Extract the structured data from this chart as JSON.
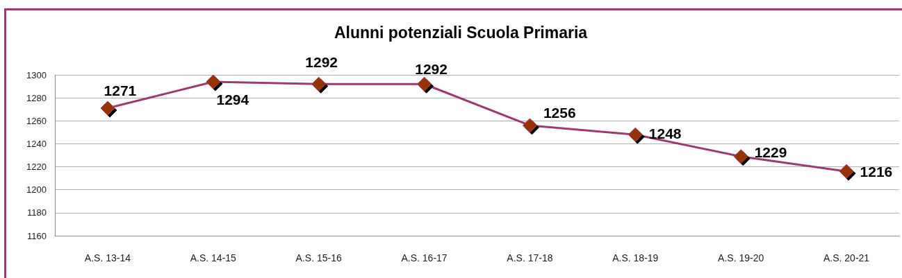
{
  "chart_data": {
    "type": "line",
    "title": "Alunni potenziali Scuola Primaria",
    "categories": [
      "A.S. 13-14",
      "A.S. 14-15",
      "A.S. 15-16",
      "A.S. 16-17",
      "A.S. 17-18",
      "A.S. 18-19",
      "A.S. 19-20",
      "A.S. 20-21"
    ],
    "series": [
      {
        "color": "#9b3a6e",
        "values": [
          1271,
          1294,
          1292,
          1292,
          1256,
          1248,
          1229,
          1216
        ]
      }
    ],
    "ylim": [
      1160,
      1300
    ],
    "yticks": [
      1160,
      1180,
      1200,
      1220,
      1240,
      1260,
      1280,
      1300
    ],
    "grid": "y",
    "marker": "diamond",
    "line_style": "solid",
    "data_labels": true
  }
}
